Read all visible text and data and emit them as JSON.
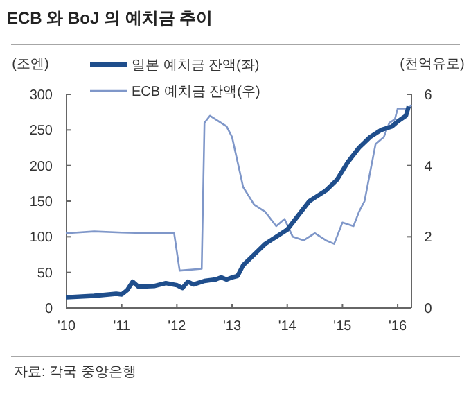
{
  "chart_data": {
    "type": "line",
    "title": "ECB 와 BoJ 의 예치금 추이",
    "ylabel": "(조엔)",
    "y2label": "(천억유로)",
    "annotations": [
      "자료: 각국 중앙은행"
    ],
    "xlim": [
      2010,
      2016.25
    ],
    "xticks": [
      {
        "value": 2010,
        "label": "'10"
      },
      {
        "value": 2011,
        "label": "'11"
      },
      {
        "value": 2012,
        "label": "'12"
      },
      {
        "value": 2013,
        "label": "'13"
      },
      {
        "value": 2014,
        "label": "'14"
      },
      {
        "value": 2015,
        "label": "'15"
      },
      {
        "value": 2016,
        "label": "'16"
      }
    ],
    "ylim": [
      0,
      300
    ],
    "yticks": [
      0,
      50,
      100,
      150,
      200,
      250,
      300
    ],
    "y2lim": [
      0,
      6
    ],
    "y2ticks": [
      0,
      2,
      4,
      6
    ],
    "legend": "top",
    "grid": false,
    "series": [
      {
        "name": "일본 예치금 잔액(좌)",
        "color": "#1f4e8c",
        "x": [
          2010.0,
          2010.5,
          2010.9,
          2011.0,
          2011.1,
          2011.2,
          2011.3,
          2011.6,
          2011.8,
          2012.0,
          2012.1,
          2012.2,
          2012.3,
          2012.5,
          2012.7,
          2012.8,
          2012.9,
          2013.0,
          2013.1,
          2013.2,
          2013.4,
          2013.6,
          2013.8,
          2014.0,
          2014.2,
          2014.4,
          2014.5,
          2014.7,
          2014.9,
          2015.1,
          2015.3,
          2015.5,
          2015.7,
          2015.9,
          2016.0,
          2016.15,
          2016.2
        ],
        "values": [
          15,
          17,
          20,
          19,
          25,
          37,
          30,
          31,
          35,
          32,
          28,
          37,
          33,
          38,
          40,
          43,
          40,
          43,
          45,
          60,
          75,
          90,
          100,
          110,
          130,
          150,
          155,
          165,
          180,
          205,
          225,
          240,
          250,
          255,
          262,
          270,
          283
        ]
      },
      {
        "name": "ECB 예치금 잔액(우)",
        "color": "#7f97c9",
        "axis": "y2",
        "x": [
          2010.0,
          2010.5,
          2011.0,
          2011.5,
          2011.95,
          2012.05,
          2012.45,
          2012.5,
          2012.6,
          2012.9,
          2013.0,
          2013.2,
          2013.4,
          2013.6,
          2013.8,
          2013.95,
          2014.1,
          2014.3,
          2014.5,
          2014.7,
          2014.85,
          2015.0,
          2015.2,
          2015.3,
          2015.4,
          2015.5,
          2015.6,
          2015.75,
          2015.85,
          2015.95,
          2016.0,
          2016.2,
          2016.25
        ],
        "values": [
          2.1,
          2.15,
          2.12,
          2.1,
          2.1,
          1.05,
          1.1,
          5.2,
          5.4,
          5.1,
          4.8,
          3.4,
          2.9,
          2.7,
          2.3,
          2.5,
          2.0,
          1.9,
          2.1,
          1.9,
          1.8,
          2.4,
          2.3,
          2.7,
          3.0,
          3.8,
          4.6,
          4.8,
          5.2,
          5.3,
          5.6,
          5.6,
          5.7
        ]
      }
    ]
  }
}
